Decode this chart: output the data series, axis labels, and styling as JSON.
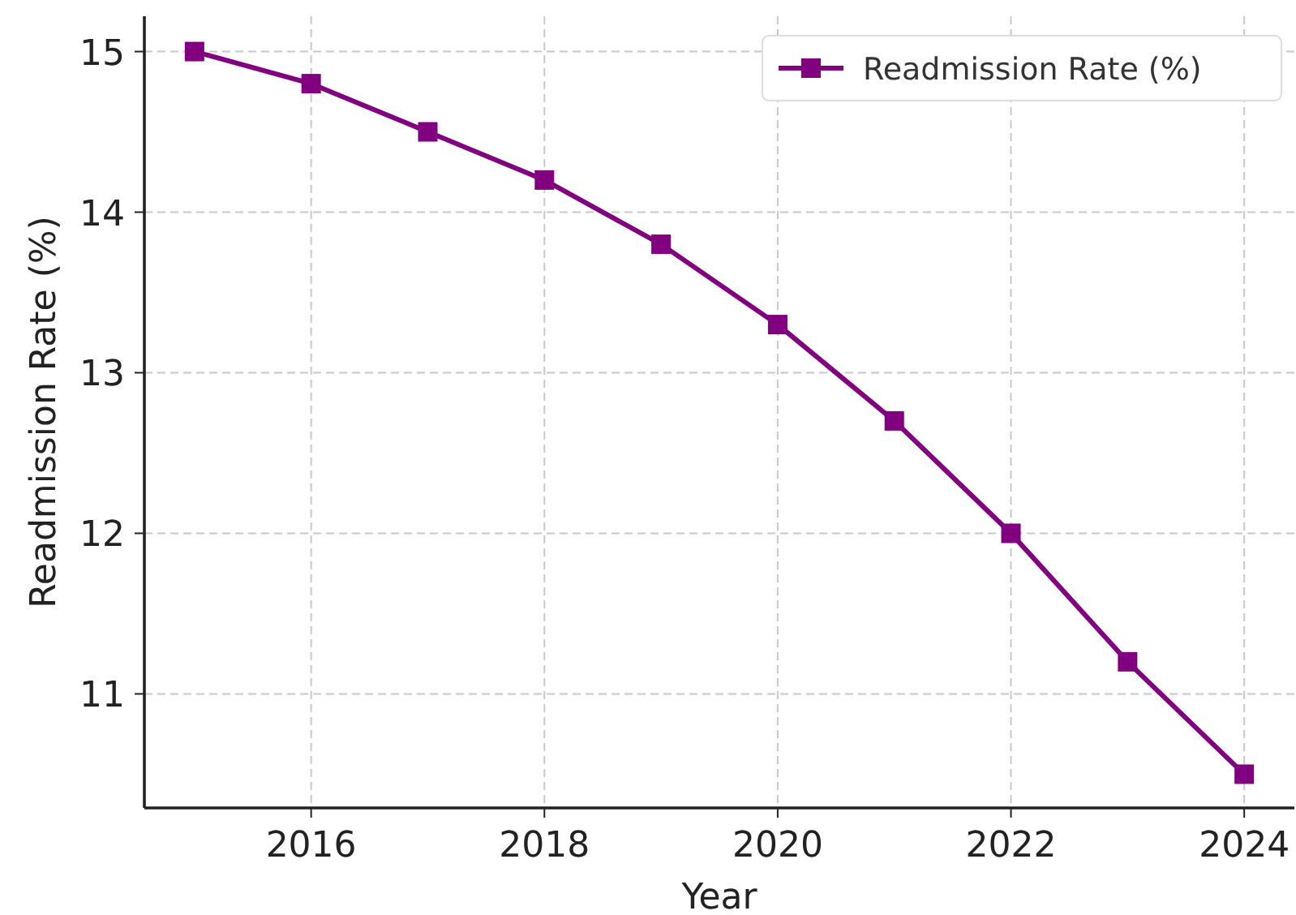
{
  "chart_data": {
    "type": "line",
    "xlabel": "Year",
    "ylabel": "Readmission Rate (%)",
    "x": [
      2015,
      2016,
      2017,
      2018,
      2019,
      2020,
      2021,
      2022,
      2023,
      2024
    ],
    "series": [
      {
        "name": "Readmission Rate (%)",
        "color": "#800080",
        "values": [
          15,
          14.8,
          14.5,
          14.2,
          13.8,
          13.3,
          12.7,
          12.0,
          11.2,
          10.5
        ]
      }
    ],
    "xlim": [
      2014.57,
      2024.43
    ],
    "xticks": [
      2016,
      2018,
      2020,
      2022,
      2024
    ],
    "ylim": [
      10.29,
      15.22
    ],
    "yticks": [
      11,
      12,
      13,
      14,
      15
    ],
    "grid": true,
    "legend": "top right",
    "marker": "square",
    "line_style": "solid"
  }
}
